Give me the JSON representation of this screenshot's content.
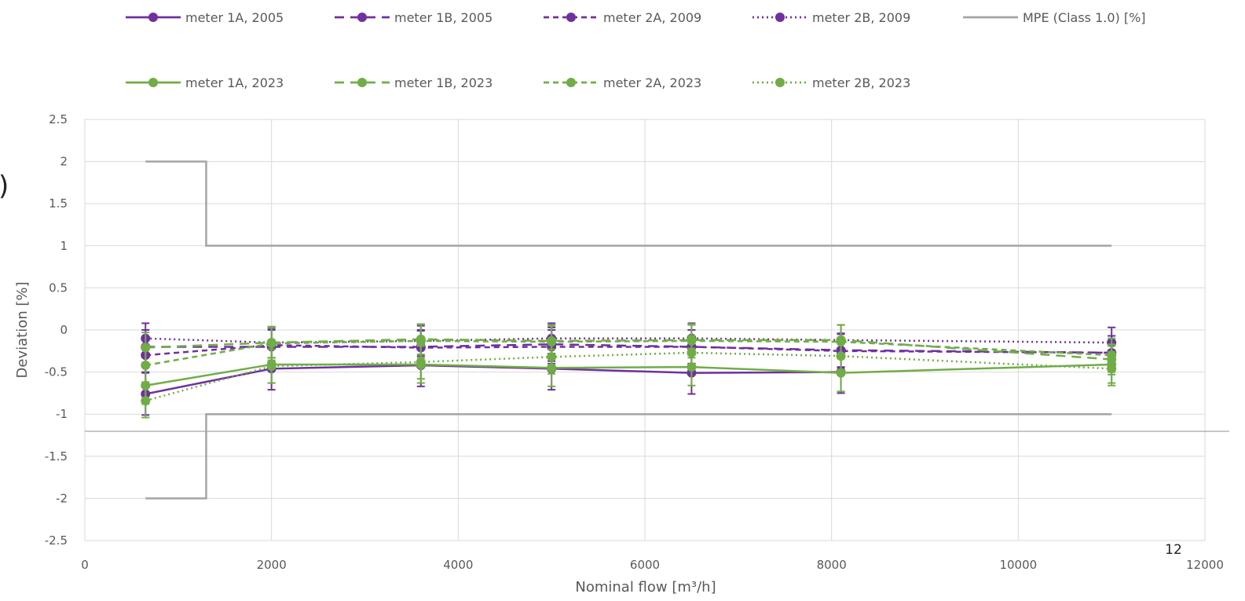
{
  "chart_data": {
    "type": "line",
    "title": "",
    "xlabel": "Nominal flow [m³/h]",
    "ylabel": "Deviation [%]",
    "xlim": [
      0,
      12000
    ],
    "ylim": [
      -2.5,
      2.5
    ],
    "x_ticks": [
      "0",
      "2000",
      "4000",
      "6000",
      "8000",
      "10000",
      "12000"
    ],
    "y_ticks": [
      "2.5",
      "2",
      "1.5",
      "1",
      "0.5",
      "0",
      "-0.5",
      "-1",
      "-1.5",
      "-2",
      "-2.5"
    ],
    "grid": true,
    "legend_position": "top",
    "x": [
      650,
      2000,
      3600,
      5000,
      6500,
      8100,
      11000
    ],
    "series": [
      {
        "name": "meter 1A, 2005",
        "color": "#7030A0",
        "dash": "solid",
        "y": [
          -0.76,
          -0.46,
          -0.42,
          -0.46,
          -0.51,
          -0.5,
          null
        ],
        "err": 0.25
      },
      {
        "name": "meter 1B, 2005",
        "color": "#7030A0",
        "dash": "dash",
        "y": [
          -0.2,
          -0.2,
          -0.2,
          -0.17,
          -0.2,
          -0.24,
          -0.27
        ],
        "err": 0.2
      },
      {
        "name": "meter 2A, 2009",
        "color": "#7030A0",
        "dash": "shortdash",
        "y": [
          -0.3,
          -0.18,
          -0.21,
          -0.2,
          -0.2,
          -0.25,
          -0.27
        ],
        "err": 0.2
      },
      {
        "name": "meter 2B, 2009",
        "color": "#7030A0",
        "dash": "dot",
        "y": [
          -0.1,
          -0.15,
          -0.13,
          -0.1,
          -0.1,
          -0.12,
          -0.15
        ],
        "err": 0.18
      },
      {
        "name": "MPE (Class 1.0) [%]",
        "color": "#A5A5A5",
        "dash": "solid",
        "type": "step",
        "upper": [
          [
            650,
            2
          ],
          [
            1300,
            2
          ],
          [
            1300,
            1
          ],
          [
            11000,
            1
          ]
        ],
        "lower": [
          [
            650,
            -2
          ],
          [
            1300,
            -2
          ],
          [
            1300,
            -1
          ],
          [
            11000,
            -1
          ]
        ]
      },
      {
        "name": "meter 1A, 2023",
        "color": "#70AD47",
        "dash": "solid",
        "y": [
          -0.66,
          -0.41,
          -0.41,
          -0.45,
          -0.44,
          -0.51,
          -0.41
        ],
        "err": 0.22
      },
      {
        "name": "meter 1B, 2023",
        "color": "#70AD47",
        "dash": "dash",
        "y": [
          -0.21,
          -0.15,
          -0.11,
          -0.13,
          -0.12,
          -0.12,
          -0.35
        ],
        "err": 0.18
      },
      {
        "name": "meter 2A, 2023",
        "color": "#70AD47",
        "dash": "shortdash",
        "y": [
          -0.42,
          -0.16,
          -0.13,
          -0.14,
          -0.13,
          -0.14,
          -0.3
        ],
        "err": 0.2
      },
      {
        "name": "meter 2B, 2023",
        "color": "#70AD47",
        "dash": "dot",
        "y": [
          -0.84,
          -0.43,
          -0.38,
          -0.32,
          -0.27,
          -0.31,
          -0.46
        ],
        "err": 0.2
      }
    ]
  },
  "page_number": "12",
  "edge_glyph": ")"
}
